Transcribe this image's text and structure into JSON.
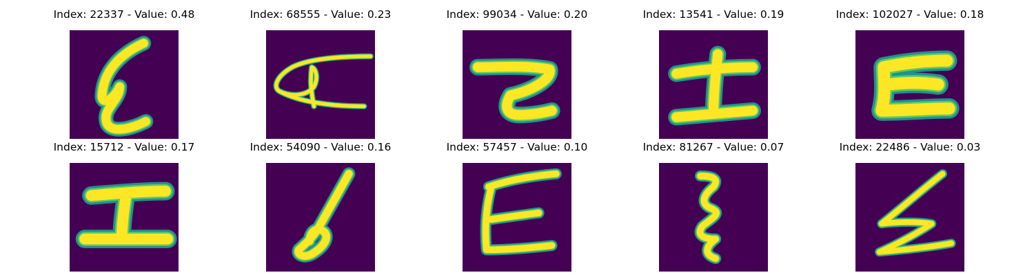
{
  "panels": [
    {
      "title": "Index: 22337 - Value: 0.48",
      "glyph": "handwritten-e-narrow-icon"
    },
    {
      "title": "Index: 68555 - Value: 0.23",
      "glyph": "handwritten-e-sideways-icon"
    },
    {
      "title": "Index: 99034 - Value: 0.20",
      "glyph": "handwritten-z-icon"
    },
    {
      "title": "Index: 13541 - Value: 0.19",
      "glyph": "handwritten-i-icon"
    },
    {
      "title": "Index: 102027 - Value: 0.18",
      "glyph": "handwritten-e-bold-icon"
    },
    {
      "title": "Index: 15712 - Value: 0.17",
      "glyph": "handwritten-i-wide-icon"
    },
    {
      "title": "Index: 54090 - Value: 0.16",
      "glyph": "handwritten-slanted-loop-icon"
    },
    {
      "title": "Index: 57457 - Value: 0.10",
      "glyph": "handwritten-e-icon"
    },
    {
      "title": "Index: 81267 - Value: 0.07",
      "glyph": "handwritten-e-squiggle-icon"
    },
    {
      "title": "Index: 22486 - Value: 0.03",
      "glyph": "handwritten-e-zigzag-icon"
    }
  ],
  "colors": {
    "background": "#440154",
    "stroke_edge": "#21918c",
    "stroke_mid": "#5ec962",
    "stroke_core": "#fde725"
  }
}
